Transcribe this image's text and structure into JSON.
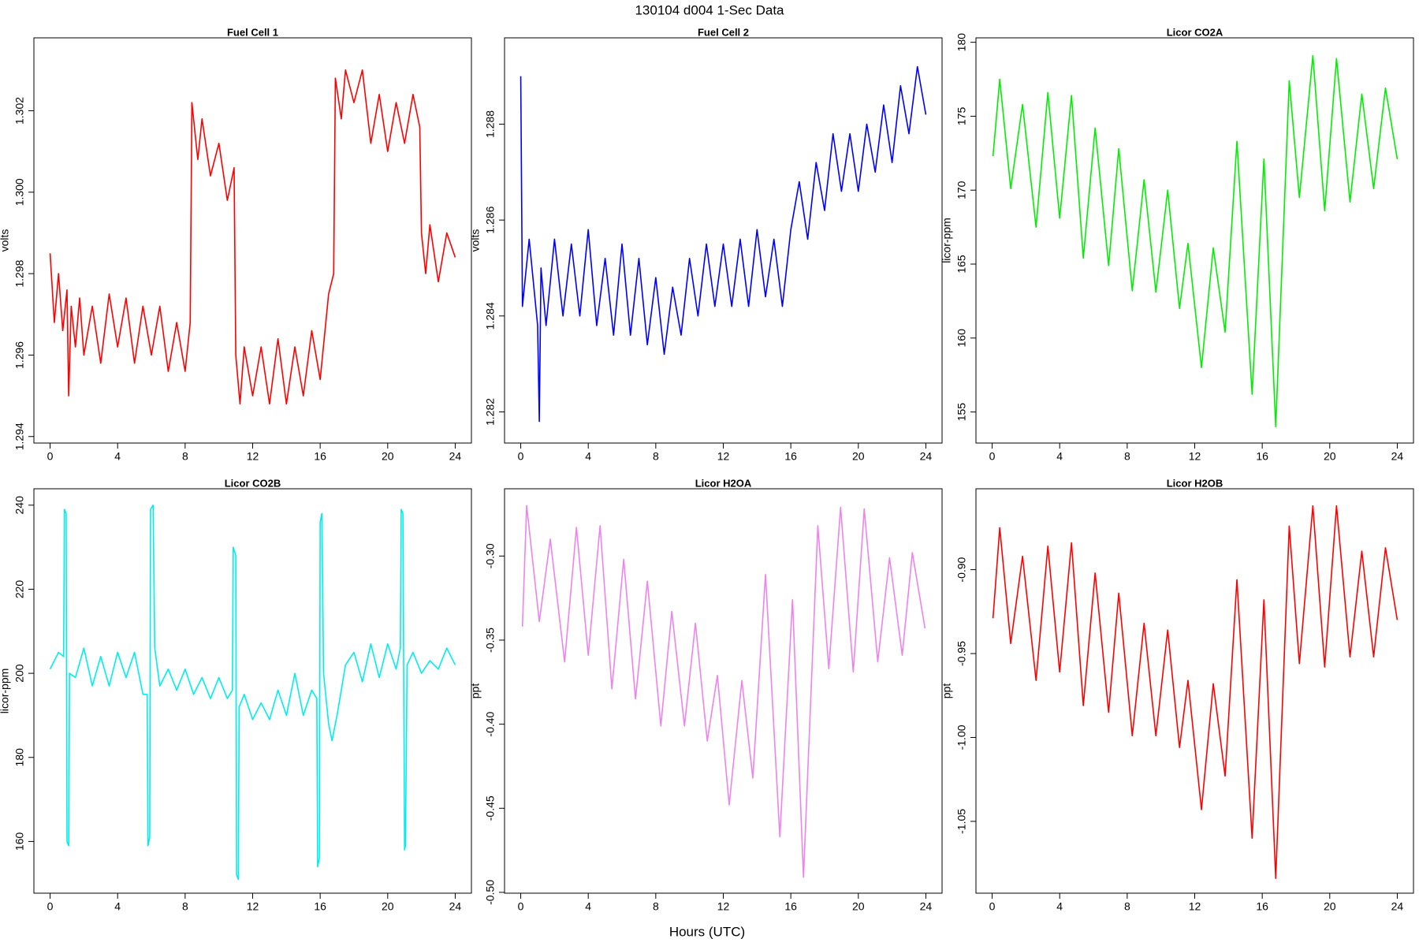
{
  "title": "130104   d004   1-Sec Data",
  "xlabel": "Hours (UTC)",
  "chart_data": [
    {
      "type": "line",
      "title": "Fuel Cell 1",
      "ylabel": "volts",
      "color": "#ff0000",
      "xlim": [
        -0.96,
        24.96
      ],
      "xticks": [
        0,
        4,
        8,
        12,
        16,
        20,
        24
      ],
      "ylim": [
        1.29384,
        1.30379
      ],
      "yticks": [
        1.294,
        1.296,
        1.298,
        {
          "value": 1.3,
          "label": "1.300"
        },
        1.302
      ],
      "x": [
        0,
        0.25,
        0.5,
        0.75,
        1,
        1.1,
        1.25,
        1.5,
        1.75,
        2,
        2.5,
        3,
        3.5,
        4,
        4.5,
        5,
        5.5,
        6,
        6.5,
        7,
        7.5,
        8,
        8.3,
        8.4,
        8.75,
        9,
        9.5,
        10,
        10.5,
        10.9,
        11,
        11.25,
        11.5,
        12,
        12.5,
        13,
        13.5,
        14,
        14.5,
        15,
        15.5,
        16,
        16.5,
        16.8,
        16.9,
        17.25,
        17.5,
        18,
        18.5,
        19,
        19.5,
        20,
        20.5,
        21,
        21.5,
        21.9,
        22,
        22.25,
        22.5,
        23,
        23.5,
        24
      ],
      "values": [
        1.2985,
        1.2968,
        1.298,
        1.2966,
        1.2976,
        1.295,
        1.2972,
        1.2962,
        1.2974,
        1.296,
        1.2972,
        1.2958,
        1.2975,
        1.2962,
        1.2974,
        1.2958,
        1.2972,
        1.296,
        1.2972,
        1.2956,
        1.2968,
        1.2956,
        1.2968,
        1.3022,
        1.3008,
        1.3018,
        1.3004,
        1.3012,
        1.2998,
        1.3006,
        1.296,
        1.2948,
        1.2962,
        1.295,
        1.2962,
        1.2948,
        1.2964,
        1.2948,
        1.2962,
        1.295,
        1.2966,
        1.2954,
        1.2975,
        1.298,
        1.3028,
        1.3018,
        1.303,
        1.3022,
        1.303,
        1.3012,
        1.3024,
        1.301,
        1.3022,
        1.3012,
        1.3024,
        1.3016,
        1.299,
        1.298,
        1.2992,
        1.2978,
        1.299,
        1.2984
      ]
    },
    {
      "type": "line",
      "title": "Fuel Cell 2",
      "ylabel": "volts",
      "color": "#0000ff",
      "xlim": [
        -0.96,
        24.96
      ],
      "xticks": [
        0,
        4,
        8,
        12,
        16,
        20,
        24
      ],
      "ylim": [
        1.28135,
        1.2898
      ],
      "yticks": [
        1.282,
        1.284,
        1.286,
        1.288
      ],
      "x": [
        0,
        0.1,
        0.5,
        1,
        1.1,
        1.2,
        1.5,
        2,
        2.5,
        3,
        3.5,
        4,
        4.5,
        5,
        5.5,
        6,
        6.5,
        7,
        7.5,
        8,
        8.5,
        9,
        9.5,
        10,
        10.5,
        11,
        11.5,
        12,
        12.5,
        13,
        13.5,
        14,
        14.5,
        15,
        15.5,
        16,
        16.5,
        17,
        17.5,
        18,
        18.5,
        19,
        19.5,
        20,
        20.5,
        21,
        21.5,
        22,
        22.5,
        23,
        23.5,
        24
      ],
      "values": [
        1.289,
        1.2842,
        1.2856,
        1.2838,
        1.2818,
        1.285,
        1.2838,
        1.2856,
        1.284,
        1.2855,
        1.284,
        1.2858,
        1.2838,
        1.2852,
        1.2836,
        1.2855,
        1.2836,
        1.2852,
        1.2834,
        1.2848,
        1.2832,
        1.2846,
        1.2836,
        1.2852,
        1.284,
        1.2855,
        1.2842,
        1.2855,
        1.2842,
        1.2856,
        1.2842,
        1.2858,
        1.2844,
        1.2856,
        1.2842,
        1.2858,
        1.2868,
        1.2856,
        1.2872,
        1.2862,
        1.2878,
        1.2866,
        1.2878,
        1.2866,
        1.288,
        1.287,
        1.2884,
        1.2872,
        1.2888,
        1.2878,
        1.2892,
        1.2882
      ]
    },
    {
      "type": "line",
      "title": "Licor CO2A",
      "ylabel": "licor-ppm",
      "color": "#00ee00",
      "xlim": [
        -0.96,
        24.96
      ],
      "xticks": [
        0,
        4,
        8,
        12,
        16,
        20,
        24
      ],
      "ylim": [
        152.9,
        180.3
      ],
      "yticks": [
        155,
        160,
        165,
        170,
        175,
        180
      ],
      "x": [
        0.05,
        0.45,
        1.1,
        1.8,
        2.6,
        3.3,
        4.0,
        4.7,
        5.4,
        6.1,
        6.9,
        7.5,
        8.3,
        9.0,
        9.7,
        10.4,
        11.1,
        11.6,
        12.4,
        13.1,
        13.8,
        14.5,
        15.4,
        16.1,
        16.8,
        17.6,
        18.2,
        19.0,
        19.7,
        20.4,
        21.2,
        21.9,
        22.6,
        23.3,
        24.0
      ],
      "values": [
        172.3,
        177.5,
        170.1,
        175.8,
        167.5,
        176.6,
        168.1,
        176.4,
        165.4,
        174.2,
        164.9,
        172.8,
        163.2,
        170.7,
        163.1,
        170.0,
        162.0,
        166.4,
        158.0,
        166.1,
        160.4,
        173.3,
        156.2,
        172.1,
        154.0,
        177.4,
        169.5,
        179.1,
        168.6,
        178.9,
        169.2,
        176.5,
        170.1,
        176.9,
        172.1
      ]
    },
    {
      "type": "line",
      "title": "Licor CO2B",
      "ylabel": "licor-ppm",
      "color": "#00eeee",
      "xlim": [
        -0.96,
        24.96
      ],
      "xticks": [
        0,
        4,
        8,
        12,
        16,
        20,
        24
      ],
      "ylim": [
        147.7,
        243.9
      ],
      "yticks": [
        160,
        180,
        200,
        220,
        240
      ],
      "x": [
        0,
        0.5,
        0.8,
        0.85,
        0.95,
        1,
        1.1,
        1.15,
        1.5,
        2,
        2.5,
        3,
        3.5,
        4,
        4.5,
        5,
        5.5,
        5.75,
        5.8,
        5.9,
        5.95,
        6.1,
        6.2,
        6.5,
        7,
        7.5,
        8,
        8.5,
        9,
        9.5,
        10,
        10.5,
        10.8,
        10.85,
        11,
        11.05,
        11.15,
        11.2,
        11.5,
        12,
        12.5,
        13,
        13.5,
        14,
        14.5,
        15,
        15.5,
        15.8,
        15.85,
        15.95,
        16,
        16.1,
        16.2,
        16.5,
        16.7,
        17,
        17.5,
        18,
        18.5,
        19,
        19.5,
        20,
        20.5,
        20.75,
        20.8,
        20.9,
        21,
        21.05,
        21.15,
        21.5,
        22,
        22.5,
        23,
        23.5,
        24
      ],
      "values": [
        201,
        205,
        204,
        239,
        238,
        160,
        159,
        200,
        199,
        206,
        197,
        204,
        197,
        205,
        199,
        205,
        195,
        195,
        159,
        161,
        239,
        240,
        206,
        197,
        201,
        196,
        201,
        195,
        199,
        194,
        199,
        194,
        196,
        230,
        228,
        152,
        151,
        192,
        195,
        189,
        193,
        189,
        196,
        190,
        200,
        190,
        196,
        194,
        154,
        156,
        236,
        238,
        200,
        188,
        184,
        190,
        202,
        205,
        198,
        207,
        199,
        207,
        201,
        206,
        239,
        238,
        158,
        159,
        202,
        205,
        200,
        203,
        201,
        206,
        202
      ]
    },
    {
      "type": "line",
      "title": "Licor H2OA",
      "ylabel": "ppt",
      "color": "#ee82ee",
      "xlim": [
        -0.96,
        24.96
      ],
      "xticks": [
        0,
        4,
        8,
        12,
        16,
        20,
        24
      ],
      "ylim": [
        -0.5005,
        -0.26
      ],
      "yticks": [
        {
          "value": -0.5,
          "label": "-0.50"
        },
        -0.45,
        {
          "value": -0.4,
          "label": "-0.40"
        },
        -0.35,
        {
          "value": -0.3,
          "label": "-0.30"
        }
      ],
      "x": [
        0.1,
        0.35,
        1.1,
        1.75,
        2.6,
        3.3,
        4.0,
        4.7,
        5.4,
        6.1,
        6.8,
        7.5,
        8.3,
        8.95,
        9.7,
        10.35,
        11.05,
        11.65,
        12.35,
        13.1,
        13.75,
        14.5,
        15.35,
        16.1,
        16.75,
        17.6,
        18.25,
        18.95,
        19.7,
        20.35,
        21.15,
        21.85,
        22.6,
        23.2,
        23.95
      ],
      "values": [
        -0.342,
        -0.27,
        -0.339,
        -0.29,
        -0.363,
        -0.283,
        -0.359,
        -0.282,
        -0.379,
        -0.302,
        -0.385,
        -0.315,
        -0.401,
        -0.333,
        -0.401,
        -0.34,
        -0.41,
        -0.371,
        -0.448,
        -0.374,
        -0.432,
        -0.311,
        -0.467,
        -0.326,
        -0.491,
        -0.282,
        -0.367,
        -0.271,
        -0.369,
        -0.272,
        -0.363,
        -0.301,
        -0.359,
        -0.298,
        -0.343
      ]
    },
    {
      "type": "line",
      "title": "Licor H2OB",
      "ylabel": "ppt",
      "color": "#ff0000",
      "xlim": [
        -0.96,
        24.96
      ],
      "xticks": [
        0,
        4,
        8,
        12,
        16,
        20,
        24
      ],
      "ylim": [
        -1.0928,
        -0.8518
      ],
      "yticks": [
        -1.05,
        {
          "value": -1,
          "label": "-1.00"
        },
        -0.95,
        {
          "value": -0.9,
          "label": "-0.90"
        }
      ],
      "x": [
        0.05,
        0.45,
        1.1,
        1.8,
        2.6,
        3.3,
        4.0,
        4.7,
        5.4,
        6.1,
        6.9,
        7.5,
        8.3,
        9.0,
        9.7,
        10.4,
        11.1,
        11.6,
        12.4,
        13.1,
        13.8,
        14.5,
        15.4,
        16.1,
        16.8,
        17.6,
        18.2,
        19.0,
        19.7,
        20.4,
        21.2,
        21.9,
        22.6,
        23.3,
        24.0
      ],
      "values": [
        -0.929,
        -0.875,
        -0.944,
        -0.892,
        -0.966,
        -0.886,
        -0.961,
        -0.884,
        -0.981,
        -0.902,
        -0.985,
        -0.914,
        -0.999,
        -0.932,
        -0.999,
        -0.936,
        -1.006,
        -0.966,
        -1.043,
        -0.968,
        -1.023,
        -0.906,
        -1.06,
        -0.918,
        -1.084,
        -0.874,
        -0.956,
        -0.862,
        -0.958,
        -0.862,
        -0.952,
        -0.889,
        -0.952,
        -0.887,
        -0.93
      ]
    }
  ]
}
